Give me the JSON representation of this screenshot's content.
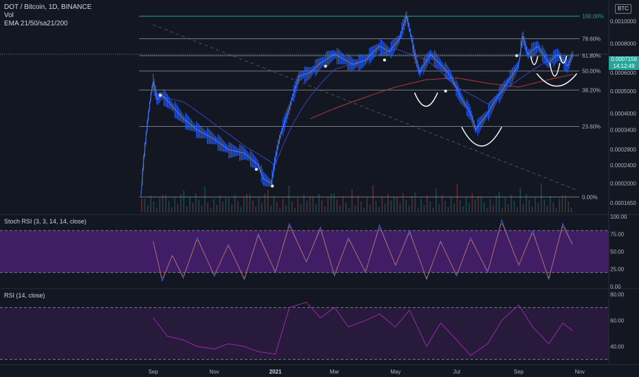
{
  "header": {
    "symbol_line": "DOT / Bitcoin, 1D, BINANCE",
    "vol_label": "Vol",
    "ema_label": "EMA 21/50/sa21/200",
    "currency_badge": "BTC"
  },
  "last_price": {
    "value": "0.0007156",
    "countdown": "14:12:49"
  },
  "colors": {
    "background": "#131722",
    "candle_color": "#2962ff",
    "fib_line": "#787b86",
    "fib_top": "#26a69a",
    "ema_slow": "#b13c3c",
    "ema_fast": "#3f3fbf",
    "oscillator": "#9c27b0",
    "oscillator_band": "#4a1f72",
    "arc": "#ffffff"
  },
  "chart_data": [
    {
      "type": "line",
      "name": "main-price",
      "scale": "log",
      "y_ticks": [
        "0.0010000",
        "0.0008000",
        "0.0006000",
        "0.0005000",
        "0.0004000",
        "0.0003400",
        "0.0002800",
        "0.0002400",
        "0.0002000",
        "0.0001650"
      ],
      "y_tick_values": [
        0.001,
        0.0008,
        0.0006,
        0.0005,
        0.0004,
        0.00034,
        0.00028,
        0.00024,
        0.0002,
        0.000165
      ],
      "ylim": [
        0.00015,
        0.0012
      ],
      "x_ticks": [
        "Sep",
        "Nov",
        "2021",
        "Mar",
        "May",
        "Jul",
        "Sep",
        "Nov"
      ],
      "x_tick_dates": [
        "2020-09-01",
        "2020-11-01",
        "2021-01-01",
        "2021-03-01",
        "2021-05-01",
        "2021-07-01",
        "2021-09-01",
        "2021-11-01"
      ],
      "xlim": [
        "2020-08-18",
        "2021-11-30"
      ],
      "fib_levels": [
        {
          "label": "100.00%",
          "price": 0.00105
        },
        {
          "label": "78.60%",
          "price": 0.00084
        },
        {
          "label": "61.80%",
          "price": 0.00071
        },
        {
          "label": "50.00%",
          "price": 0.00061
        },
        {
          "label": "38.20%",
          "price": 0.000505
        },
        {
          "label": "23.60%",
          "price": 0.000352
        },
        {
          "label": "0.00%",
          "price": 0.000175
        }
      ],
      "series": [
        {
          "role": "price",
          "x": [
            "2020-08-20",
            "2020-08-25",
            "2020-09-01",
            "2020-09-05",
            "2020-09-10",
            "2020-09-20",
            "2020-10-01",
            "2020-10-15",
            "2020-11-01",
            "2020-11-15",
            "2020-12-01",
            "2020-12-15",
            "2020-12-20",
            "2020-12-28",
            "2021-01-05",
            "2021-01-15",
            "2021-01-25",
            "2021-02-05",
            "2021-02-15",
            "2021-03-01",
            "2021-03-20",
            "2021-04-01",
            "2021-04-15",
            "2021-04-25",
            "2021-05-05",
            "2021-05-12",
            "2021-05-20",
            "2021-05-25",
            "2021-06-05",
            "2021-06-15",
            "2021-06-25",
            "2021-07-05",
            "2021-07-15",
            "2021-07-20",
            "2021-08-01",
            "2021-08-15",
            "2021-08-25",
            "2021-09-01",
            "2021-09-05",
            "2021-09-10",
            "2021-09-20",
            "2021-10-01",
            "2021-10-10",
            "2021-10-20",
            "2021-10-25"
          ],
          "values": [
            0.00018,
            0.00032,
            0.00055,
            0.00046,
            0.00048,
            0.00043,
            0.00038,
            0.00034,
            0.00031,
            0.00028,
            0.00027,
            0.00024,
            0.00021,
            0.0002,
            0.00031,
            0.00042,
            0.00058,
            0.0006,
            0.00066,
            0.00072,
            0.00065,
            0.00068,
            0.00078,
            0.00074,
            0.00084,
            0.00105,
            0.00072,
            0.0006,
            0.00072,
            0.00065,
            0.00058,
            0.00047,
            0.0004,
            0.00034,
            0.0004,
            0.0005,
            0.00058,
            0.00065,
            0.00086,
            0.00072,
            0.00078,
            0.00066,
            0.00072,
            0.00064,
            0.00072
          ]
        },
        {
          "role": "ema-slow",
          "x": [
            "2021-02-05",
            "2021-03-01",
            "2021-04-01",
            "2021-05-01",
            "2021-06-01",
            "2021-07-01",
            "2021-08-01",
            "2021-09-01",
            "2021-10-01",
            "2021-10-25"
          ],
          "values": [
            0.00038,
            0.00042,
            0.00047,
            0.00052,
            0.00056,
            0.00057,
            0.00054,
            0.00052,
            0.00056,
            0.00059
          ]
        },
        {
          "role": "ema-fast",
          "x": [
            "2020-09-01",
            "2020-10-01",
            "2020-11-01",
            "2020-12-01",
            "2021-01-01",
            "2021-02-01",
            "2021-03-01",
            "2021-04-01",
            "2021-05-01",
            "2021-06-01",
            "2021-07-01",
            "2021-08-01",
            "2021-09-01",
            "2021-10-01"
          ],
          "values": [
            0.00048,
            0.00045,
            0.00036,
            0.00029,
            0.00024,
            0.00045,
            0.00062,
            0.00068,
            0.00076,
            0.00068,
            0.00052,
            0.00044,
            0.00056,
            0.00068
          ]
        }
      ],
      "markers": [
        {
          "date": "2020-09-08",
          "value": 0.00048
        },
        {
          "date": "2020-12-13",
          "value": 0.00023
        },
        {
          "date": "2020-12-29",
          "value": 0.000195
        },
        {
          "date": "2021-02-20",
          "value": 0.00064
        },
        {
          "date": "2021-04-20",
          "value": 0.00068
        },
        {
          "date": "2021-06-20",
          "value": 0.0005
        },
        {
          "date": "2021-08-30",
          "value": 0.00071
        }
      ],
      "arcs": [
        {
          "start": "2021-05-20",
          "end": "2021-06-12",
          "top": 0.000492,
          "bottom": 0.00043
        },
        {
          "start": "2021-07-06",
          "end": "2021-08-15",
          "top": 0.00035,
          "bottom": 0.00029
        },
        {
          "start": "2021-09-19",
          "end": "2021-10-29",
          "top": 0.000595,
          "bottom": 0.000525
        },
        {
          "start": "2021-09-13",
          "end": "2021-09-20",
          "top": 0.000705,
          "bottom": 0.00065
        },
        {
          "start": "2021-10-02",
          "end": "2021-10-12",
          "top": 0.00066,
          "bottom": 0.00058
        },
        {
          "start": "2021-10-12",
          "end": "2021-10-19",
          "top": 0.00071,
          "bottom": 0.00066
        }
      ]
    },
    {
      "type": "line",
      "name": "stoch-rsi",
      "title": "Stoch RSI (3, 3, 14, 14, close)",
      "y_ticks": [
        "100.00",
        "75.00",
        "50.00",
        "25.00",
        "0.00"
      ],
      "y_tick_values": [
        100,
        75,
        50,
        25,
        0
      ],
      "ylim": [
        0,
        100
      ],
      "band": [
        20,
        80
      ],
      "series": [
        {
          "x": [
            "2020-09-01",
            "2020-09-10",
            "2020-09-20",
            "2020-10-01",
            "2020-10-15",
            "2020-11-01",
            "2020-11-15",
            "2020-12-01",
            "2020-12-15",
            "2021-01-01",
            "2021-01-15",
            "2021-02-01",
            "2021-02-15",
            "2021-03-01",
            "2021-03-15",
            "2021-04-01",
            "2021-04-15",
            "2021-05-01",
            "2021-05-15",
            "2021-06-01",
            "2021-06-15",
            "2021-07-01",
            "2021-07-15",
            "2021-08-01",
            "2021-08-15",
            "2021-09-01",
            "2021-09-15",
            "2021-10-01",
            "2021-10-15",
            "2021-10-25"
          ],
          "values": [
            65,
            8,
            45,
            12,
            70,
            15,
            60,
            10,
            75,
            20,
            90,
            35,
            85,
            15,
            70,
            20,
            88,
            30,
            80,
            10,
            65,
            15,
            70,
            20,
            95,
            30,
            80,
            10,
            90,
            60
          ]
        }
      ]
    },
    {
      "type": "line",
      "name": "rsi",
      "title": "RSI (14, close)",
      "y_ticks": [
        "80.00",
        "60.00",
        "40.00"
      ],
      "y_tick_values": [
        80,
        60,
        40
      ],
      "ylim": [
        27,
        83
      ],
      "band": [
        30,
        70
      ],
      "series": [
        {
          "x": [
            "2020-09-01",
            "2020-09-15",
            "2020-10-01",
            "2020-10-15",
            "2020-11-01",
            "2020-11-15",
            "2020-12-01",
            "2020-12-15",
            "2021-01-01",
            "2021-01-15",
            "2021-02-01",
            "2021-02-15",
            "2021-03-01",
            "2021-03-15",
            "2021-04-01",
            "2021-04-15",
            "2021-05-01",
            "2021-05-15",
            "2021-06-01",
            "2021-06-15",
            "2021-07-01",
            "2021-07-15",
            "2021-08-01",
            "2021-08-15",
            "2021-09-01",
            "2021-09-15",
            "2021-10-01",
            "2021-10-15",
            "2021-10-25"
          ],
          "values": [
            62,
            48,
            45,
            40,
            38,
            42,
            40,
            36,
            34,
            70,
            74,
            62,
            70,
            55,
            60,
            65,
            55,
            68,
            40,
            58,
            45,
            33,
            42,
            60,
            72,
            55,
            42,
            58,
            52
          ]
        }
      ]
    }
  ]
}
